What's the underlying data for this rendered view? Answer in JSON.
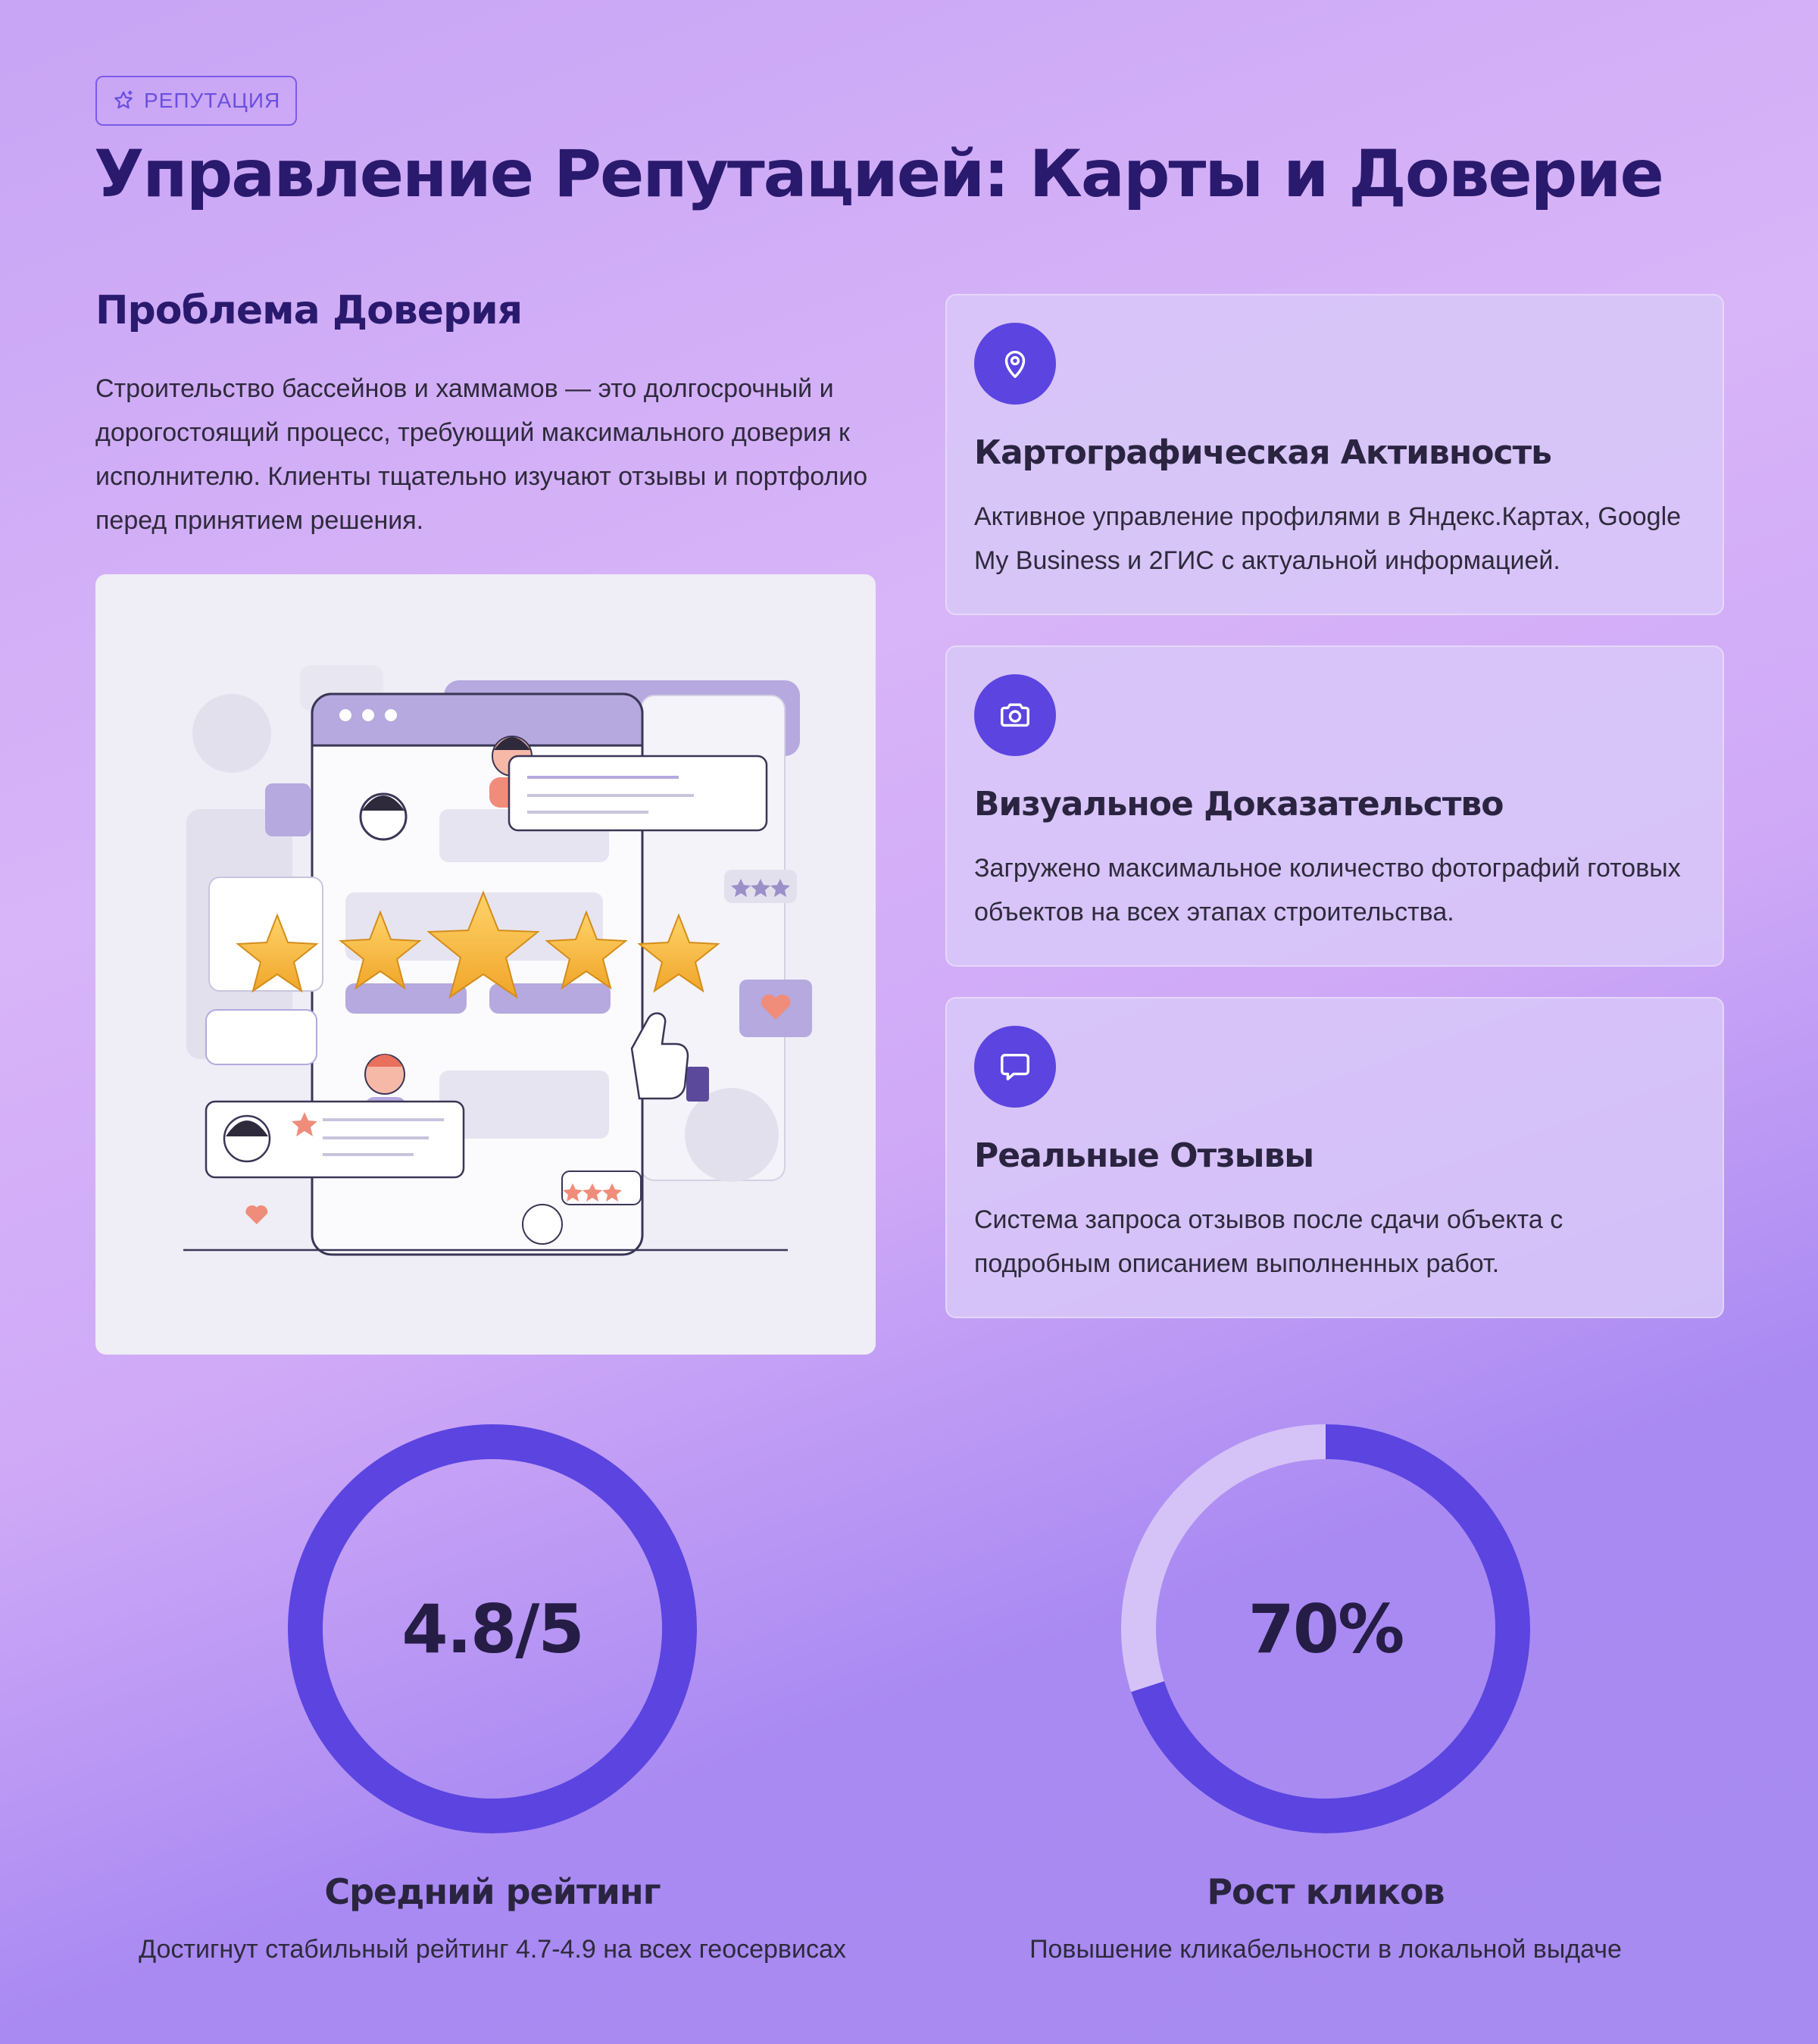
{
  "badge": {
    "label": "РЕПУТАЦИЯ",
    "icon": "sparkle-star-icon"
  },
  "title": "Управление Репутацией: Карты и Доверие",
  "problem": {
    "heading": "Проблема Доверия",
    "text": "Строительство бассейнов и хаммамов — это долгосрочный и дорогостоящий процесс, требующий максимального доверия к исполнителю. Клиенты тщательно изучают отзывы и портфолио перед принятием решения."
  },
  "features": [
    {
      "icon": "map-pin-icon",
      "title": "Картографическая Активность",
      "text": "Активное управление профилями в Яндекс.Картах, Google My Business и 2ГИС с актуальной информацией."
    },
    {
      "icon": "camera-icon",
      "title": "Визуальное Доказательство",
      "text": "Загружено максимальное количество фотографий готовых объектов на всех этапах строительства."
    },
    {
      "icon": "chat-bubble-icon",
      "title": "Реальные Отзывы",
      "text": "Система запроса отзывов после сдачи объекта с подробным описанием выполненных работ."
    }
  ],
  "stats": [
    {
      "value": "4.8/5",
      "fraction": 1.0,
      "label": "Средний рейтинг",
      "caption": "Достигнут стабильный рейтинг 4.7-4.9 на всех геосервисах"
    },
    {
      "value": "70%",
      "fraction": 0.7,
      "label": "Рост кликов",
      "caption": "Повышение кликабельности в локальной выдаче"
    }
  ],
  "colors": {
    "accent": "#5b44e0",
    "ring_track": "#d5c3f7",
    "title": "#2a1a6e"
  }
}
